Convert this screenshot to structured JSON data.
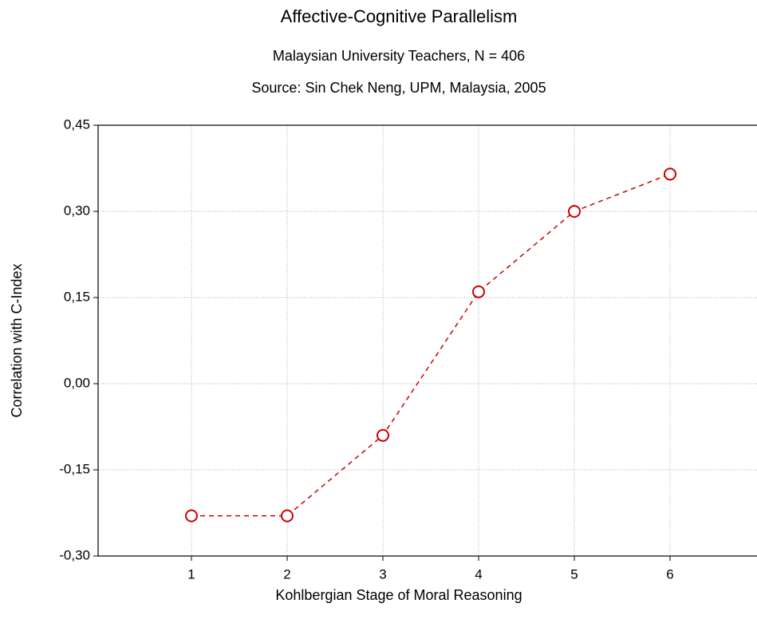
{
  "chart_data": {
    "type": "line",
    "title": "Affective-Cognitive Parallelism",
    "subtitle": "Malaysian University Teachers, N = 406",
    "source": "Source: Sin Chek Neng, UPM, Malaysia, 2005",
    "x_label": "Kohlbergian Stage of Moral Reasoning",
    "y_label": "Correlation with C-Index",
    "x": [
      1,
      2,
      3,
      4,
      5,
      6
    ],
    "values": [
      -0.23,
      -0.23,
      -0.09,
      0.16,
      0.3,
      0.365
    ],
    "color": "#cc0000",
    "xlim": [
      0,
      7
    ],
    "xticks": [
      1,
      2,
      3,
      4,
      5,
      6
    ],
    "ylim": [
      -0.3,
      0.45
    ],
    "yticks": [
      {
        "value": -0.3,
        "label": "-0,30"
      },
      {
        "value": -0.15,
        "label": "-0,15"
      },
      {
        "value": 0,
        "label": "0,00"
      },
      {
        "value": 0.15,
        "label": "0,15"
      },
      {
        "value": 0.3,
        "label": "0,30"
      },
      {
        "value": 0.45,
        "label": "0,45"
      }
    ],
    "grid": true
  }
}
